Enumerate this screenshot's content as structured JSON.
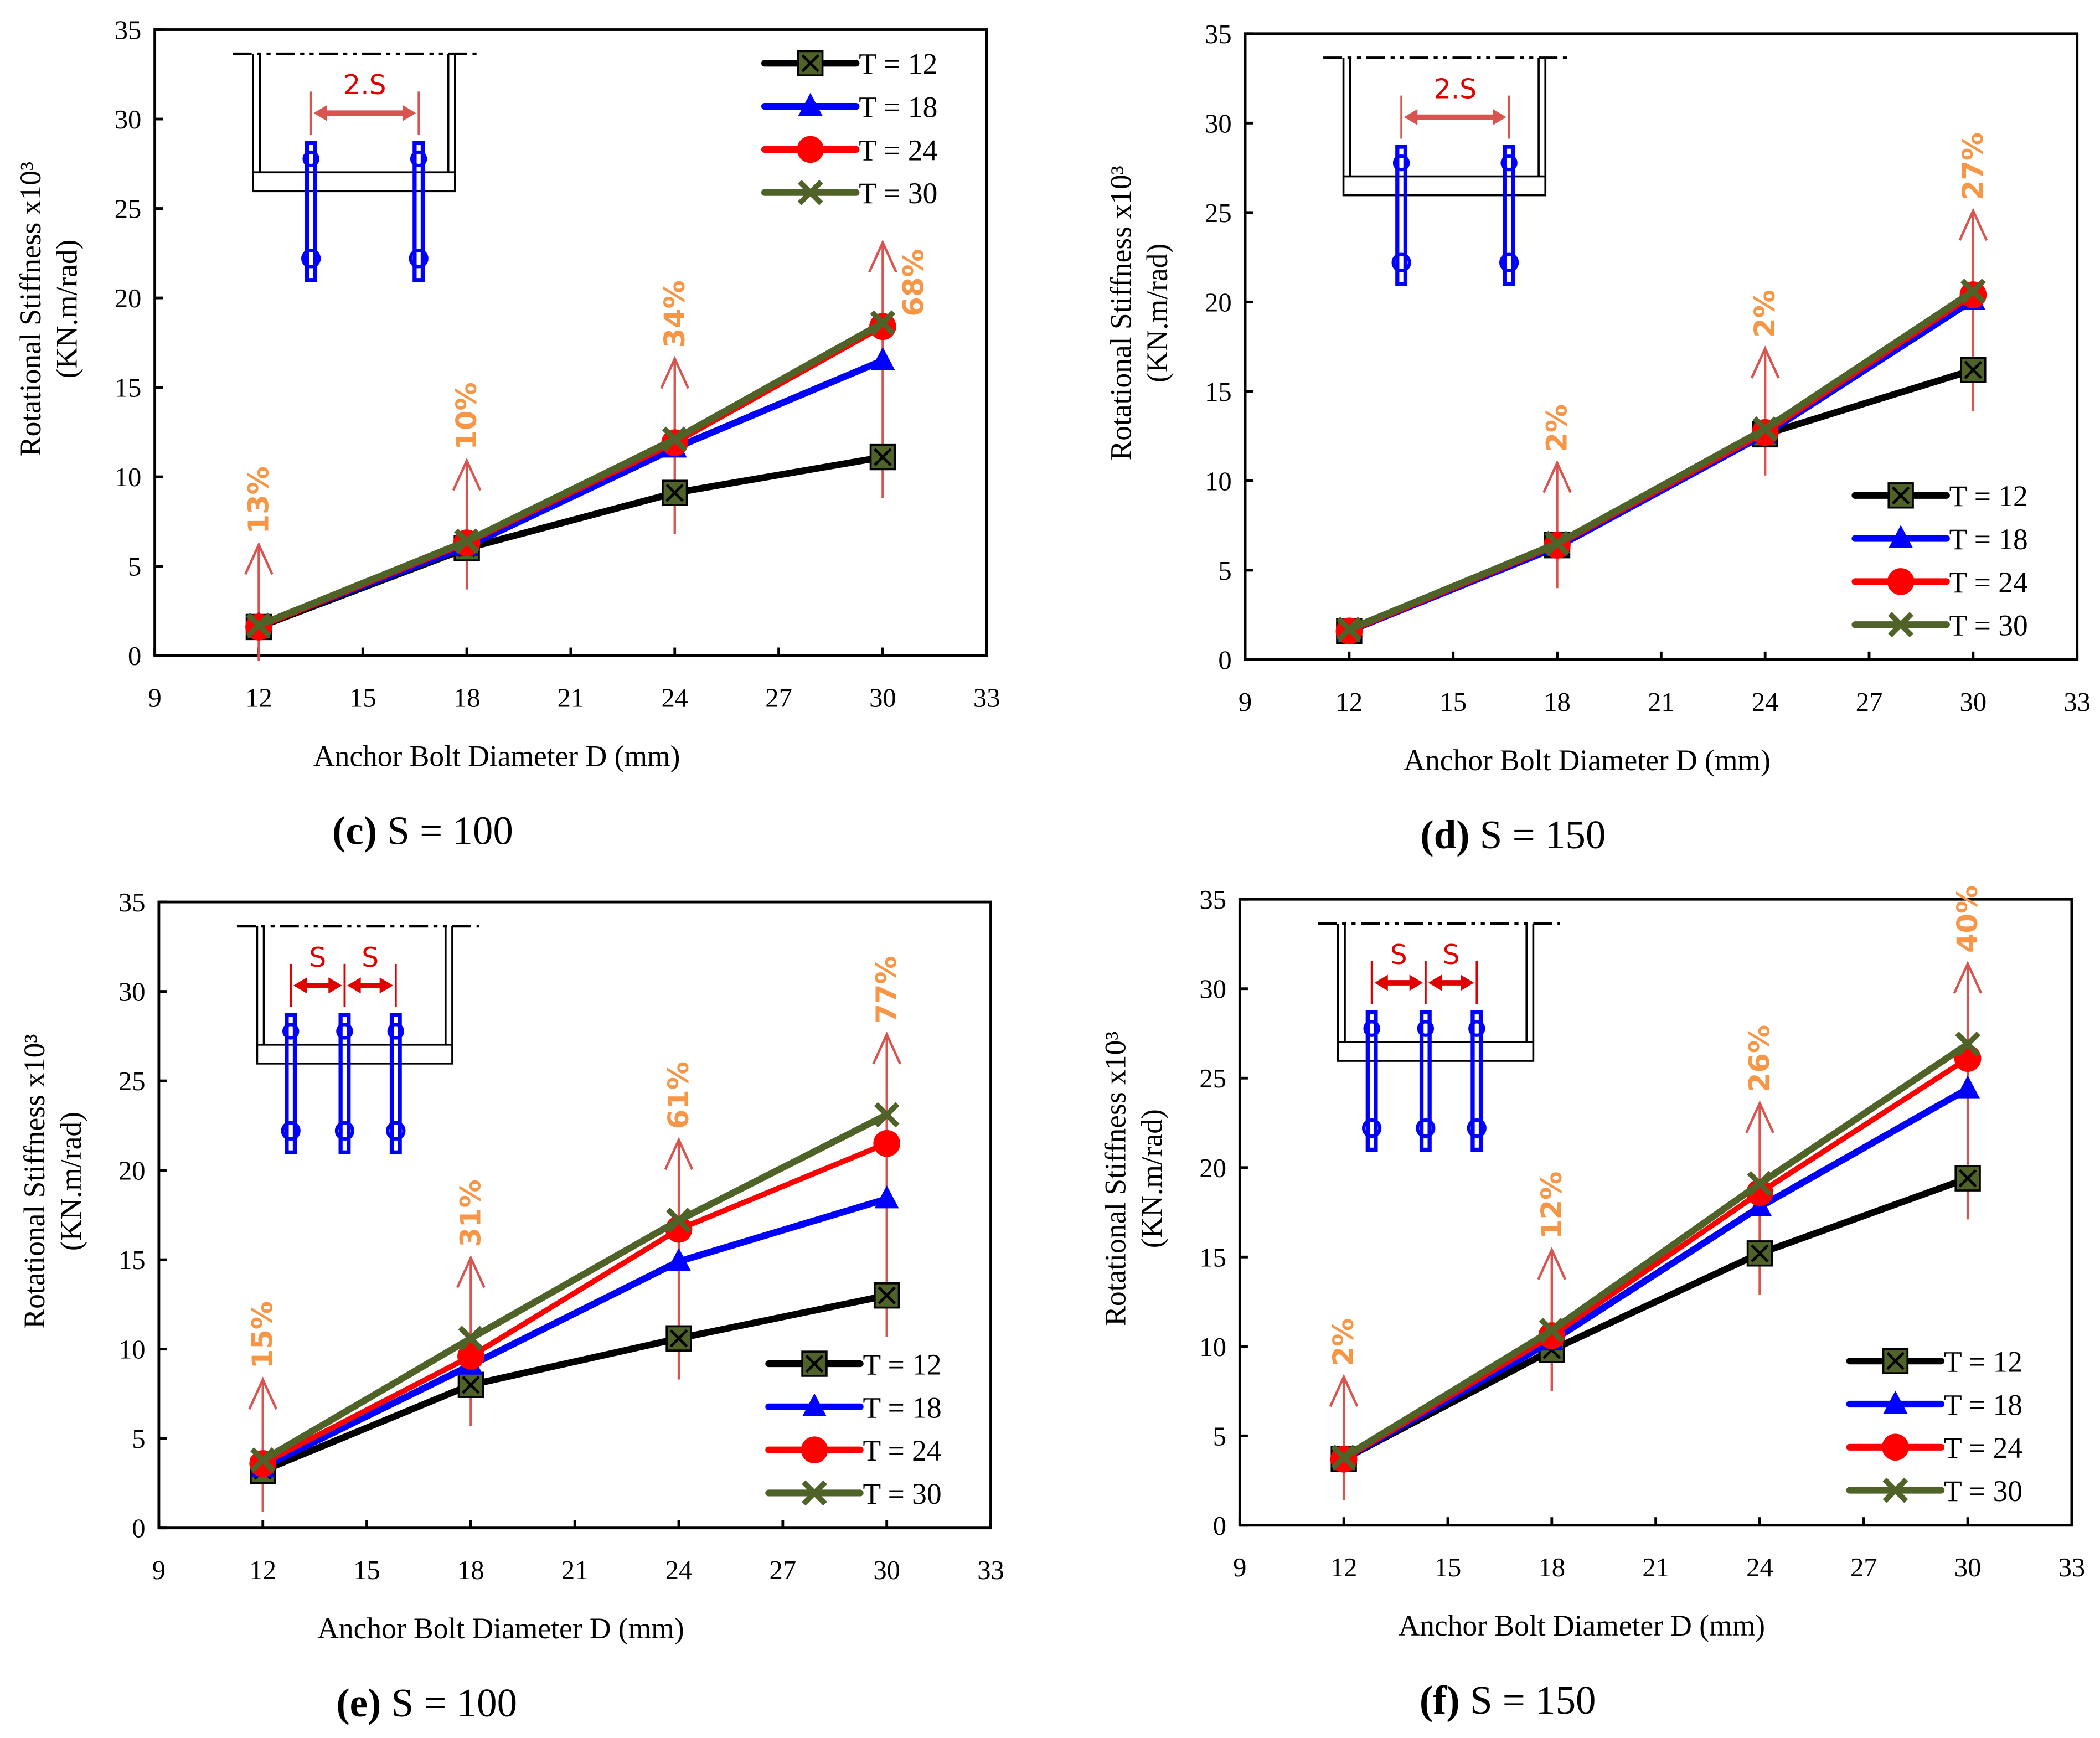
{
  "colors": {
    "T12": "#000000",
    "T18": "#0000ff",
    "T24": "#ff0000",
    "T30": "#4f6228",
    "marker12": "#4f6228",
    "arrow": "#d9534f",
    "pct": "#f79646",
    "bolt": "#0000ff"
  },
  "chart_data": [
    {
      "id": "c",
      "type": "line",
      "caption_letter": "(c)",
      "caption_text": " S = 100",
      "xlabel": "Anchor Bolt Diameter D (mm)",
      "ylabel_line1": "Rotational Stiffness x10³",
      "ylabel_line2": "(KN.m/rad)",
      "xlim": [
        9,
        33
      ],
      "ylim": [
        0,
        35
      ],
      "xticks": [
        "9",
        "12",
        "15",
        "18",
        "21",
        "24",
        "27",
        "30",
        "33"
      ],
      "yticks": [
        "0",
        "5",
        "10",
        "15",
        "20",
        "25",
        "30",
        "35"
      ],
      "x": [
        12,
        18,
        24,
        30
      ],
      "legend_position": "top-right",
      "series": [
        {
          "name": "T = 12",
          "values": [
            1.6,
            6.0,
            9.1,
            11.1
          ]
        },
        {
          "name": "T = 18",
          "values": [
            1.7,
            6.1,
            11.6,
            16.5
          ]
        },
        {
          "name": "T = 24",
          "values": [
            1.6,
            6.3,
            11.9,
            18.4
          ]
        },
        {
          "name": "T = 30",
          "values": [
            1.7,
            6.4,
            12.1,
            18.6
          ]
        }
      ],
      "annotations": [
        "13%",
        "10%",
        "34%",
        "68%"
      ],
      "inset": {
        "bolts": 2,
        "labels": [
          "2.S"
        ]
      }
    },
    {
      "id": "d",
      "type": "line",
      "caption_letter": "(d)",
      "caption_text": " S = 150",
      "xlabel": "Anchor Bolt Diameter D (mm)",
      "ylabel_line1": "Rotational Stiffness x10³",
      "ylabel_line2": "(KN.m/rad)",
      "xlim": [
        9,
        33
      ],
      "ylim": [
        0,
        35
      ],
      "xticks": [
        "9",
        "12",
        "15",
        "18",
        "21",
        "24",
        "27",
        "30",
        "33"
      ],
      "yticks": [
        "0",
        "5",
        "10",
        "15",
        "20",
        "25",
        "30",
        "35"
      ],
      "x": [
        12,
        18,
        24,
        30
      ],
      "legend_position": "bottom-right",
      "series": [
        {
          "name": "T = 12",
          "values": [
            1.6,
            6.4,
            12.6,
            16.2
          ]
        },
        {
          "name": "T = 18",
          "values": [
            1.6,
            6.3,
            12.6,
            20.1
          ]
        },
        {
          "name": "T = 24",
          "values": [
            1.6,
            6.4,
            12.7,
            20.4
          ]
        },
        {
          "name": "T = 30",
          "values": [
            1.7,
            6.5,
            12.9,
            20.6
          ]
        }
      ],
      "annotations": [
        "",
        "2%",
        "2%",
        "27%"
      ],
      "inset": {
        "bolts": 2,
        "labels": [
          "2.S"
        ]
      }
    },
    {
      "id": "e",
      "type": "line",
      "caption_letter": "(e)",
      "caption_text": " S = 100",
      "xlabel": "Anchor Bolt Diameter D (mm)",
      "ylabel_line1": "Rotational Stiffness x10³",
      "ylabel_line2": "(KN.m/rad)",
      "xlim": [
        9,
        33
      ],
      "ylim": [
        0,
        35
      ],
      "xticks": [
        "9",
        "12",
        "15",
        "18",
        "21",
        "24",
        "27",
        "30",
        "33"
      ],
      "yticks": [
        "0",
        "5",
        "10",
        "15",
        "20",
        "25",
        "30",
        "35"
      ],
      "x": [
        12,
        18,
        24,
        30
      ],
      "legend_position": "bottom-right",
      "series": [
        {
          "name": "T = 12",
          "values": [
            3.2,
            8.0,
            10.6,
            13.0
          ]
        },
        {
          "name": "T = 18",
          "values": [
            3.4,
            9.1,
            14.9,
            18.4
          ]
        },
        {
          "name": "T = 24",
          "values": [
            3.6,
            9.6,
            16.7,
            21.5
          ]
        },
        {
          "name": "T = 30",
          "values": [
            3.8,
            10.6,
            17.2,
            23.1
          ]
        }
      ],
      "annotations": [
        "15%",
        "31%",
        "61%",
        "77%"
      ],
      "inset": {
        "bolts": 3,
        "labels": [
          "S",
          "S"
        ]
      }
    },
    {
      "id": "f",
      "type": "line",
      "caption_letter": "(f)",
      "caption_text": " S = 150",
      "xlabel": "Anchor Bolt Diameter D (mm)",
      "ylabel_line1": "Rotational Stiffness x10³",
      "ylabel_line2": "(KN.m/rad)",
      "xlim": [
        9,
        33
      ],
      "ylim": [
        0,
        35
      ],
      "xticks": [
        "9",
        "12",
        "15",
        "18",
        "21",
        "24",
        "27",
        "30",
        "33"
      ],
      "yticks": [
        "0",
        "5",
        "10",
        "15",
        "20",
        "25",
        "30",
        "35"
      ],
      "x": [
        12,
        18,
        24,
        30
      ],
      "legend_position": "bottom-right",
      "series": [
        {
          "name": "T = 12",
          "values": [
            3.7,
            9.8,
            15.2,
            19.4
          ]
        },
        {
          "name": "T = 18",
          "values": [
            3.7,
            10.3,
            17.8,
            24.4
          ]
        },
        {
          "name": "T = 24",
          "values": [
            3.7,
            10.6,
            18.6,
            26.1
          ]
        },
        {
          "name": "T = 30",
          "values": [
            3.8,
            10.9,
            19.1,
            26.9
          ]
        }
      ],
      "annotations": [
        "2%",
        "12%",
        "26%",
        "40%"
      ],
      "inset": {
        "bolts": 3,
        "labels": [
          "S",
          "S"
        ]
      }
    }
  ]
}
